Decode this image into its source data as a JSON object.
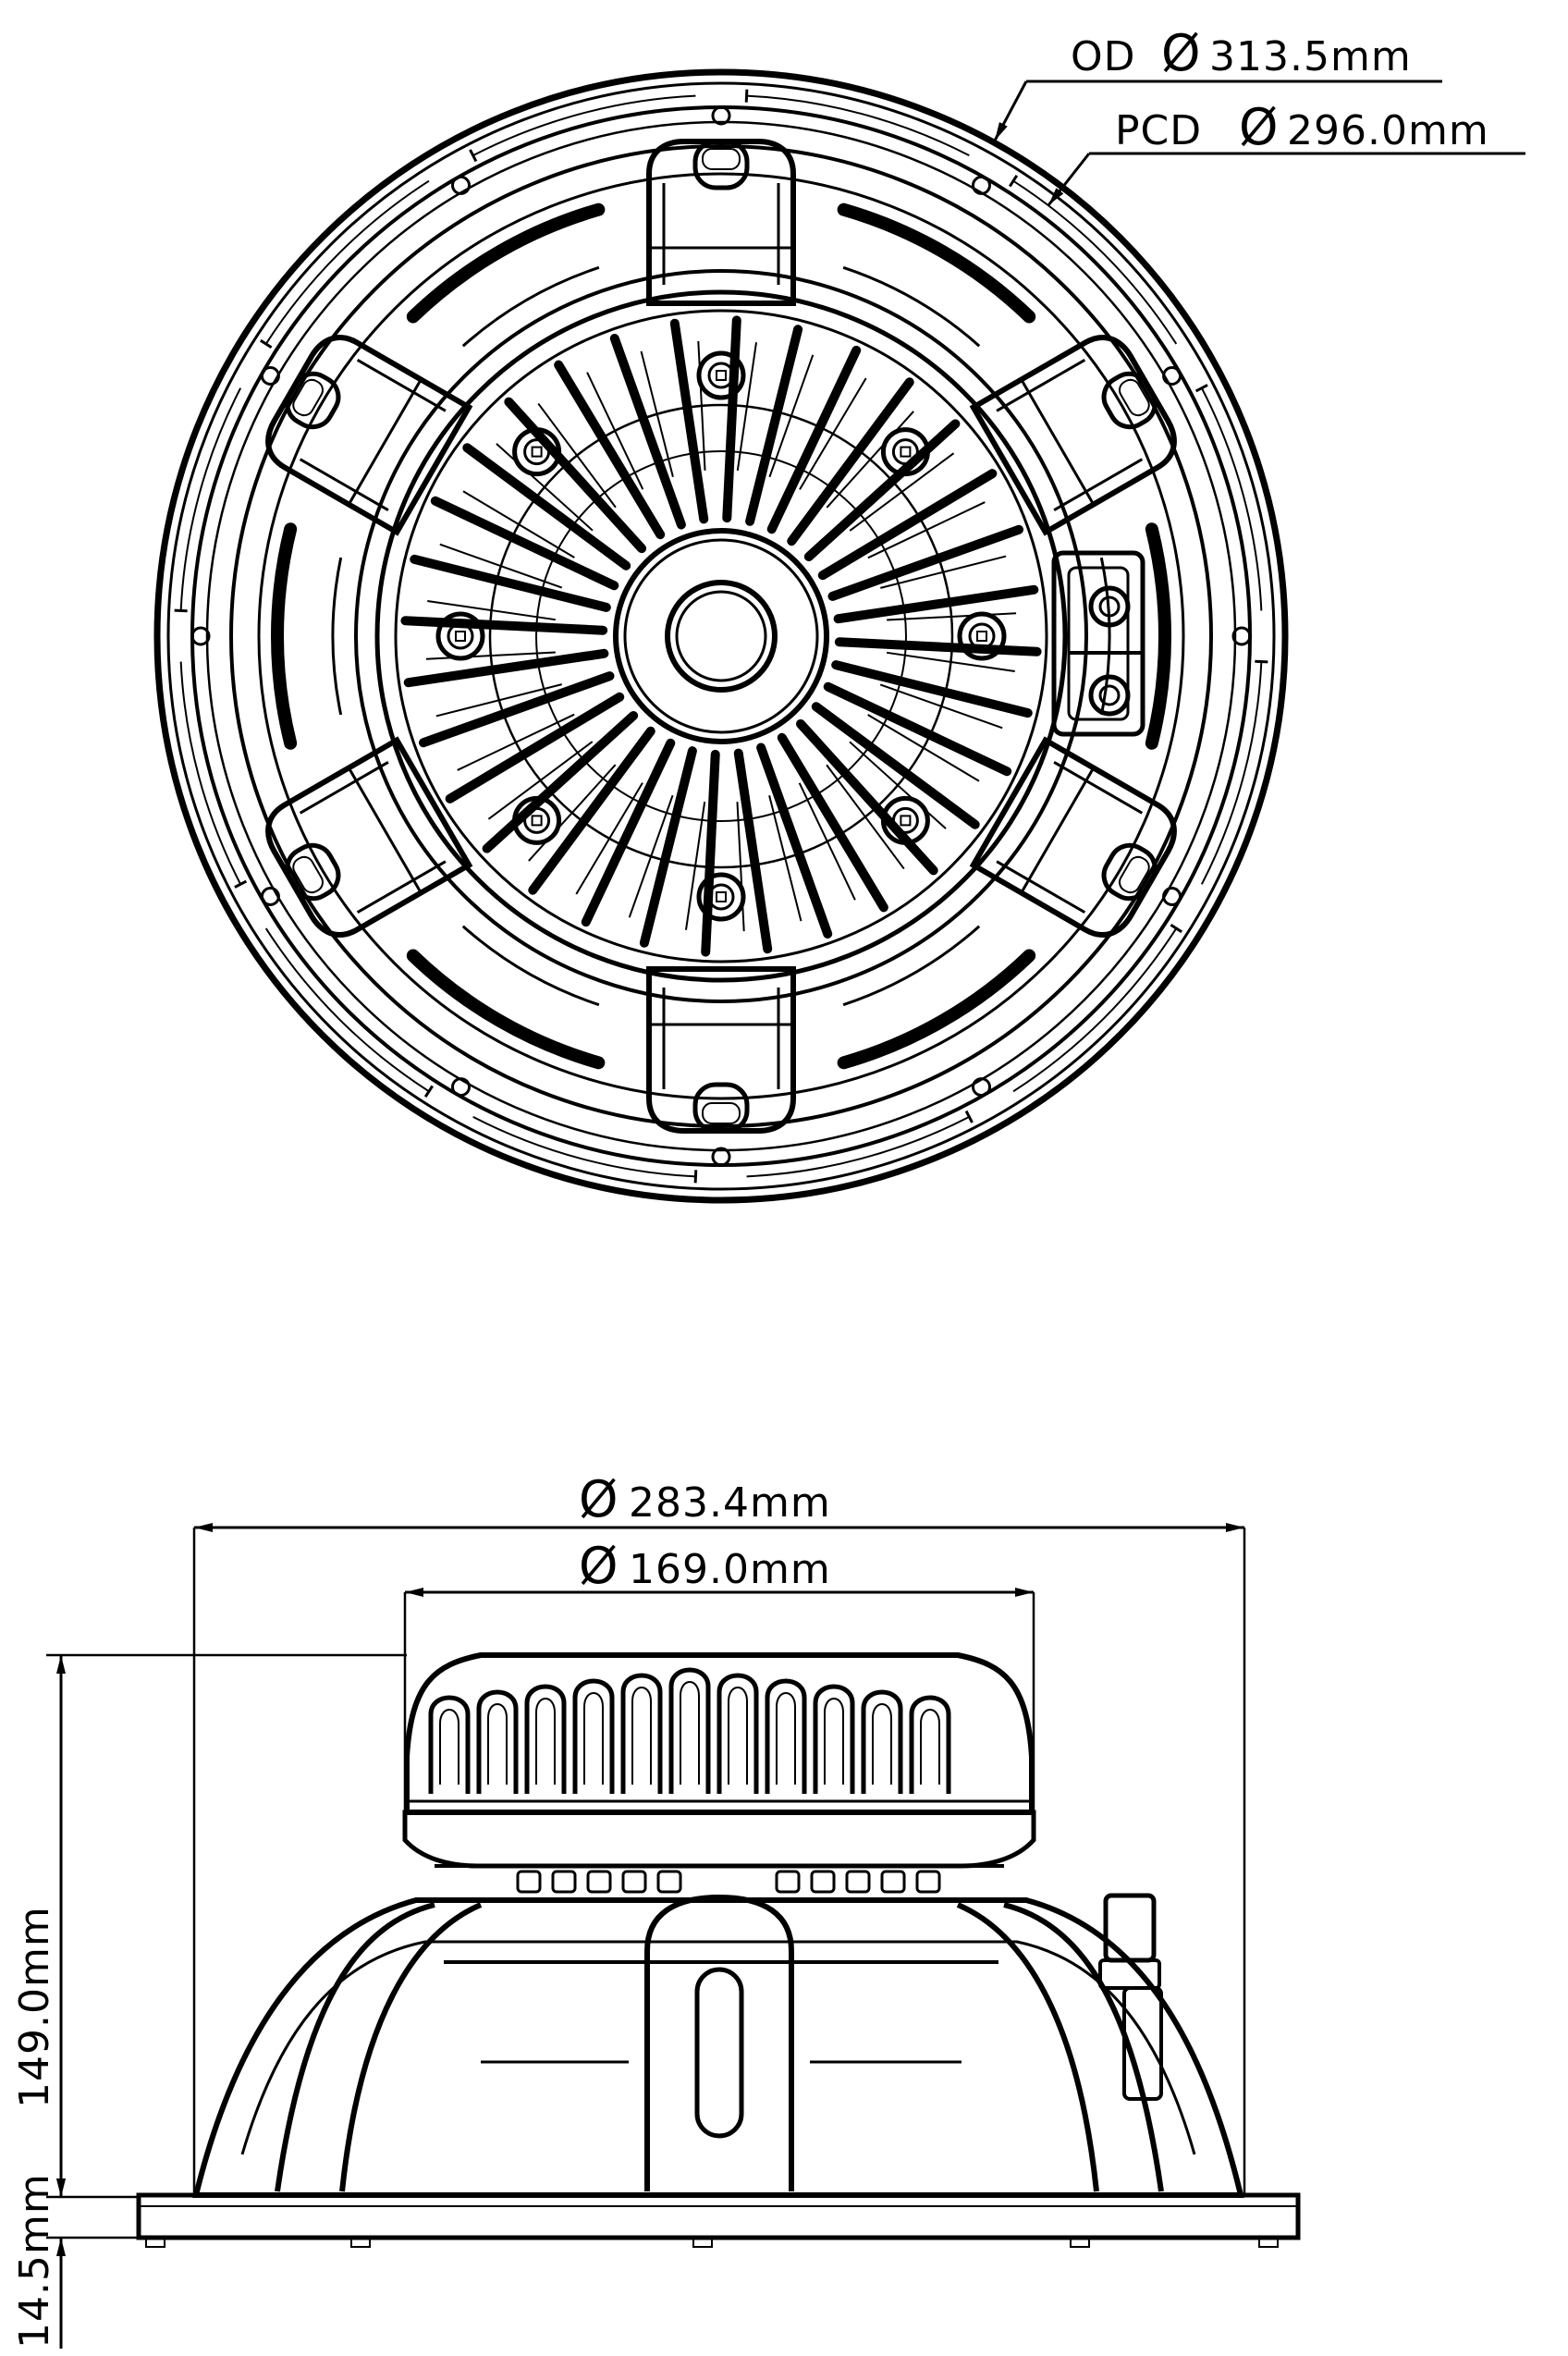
{
  "diagram": {
    "type": "technical-drawing",
    "ink_color": "#000000",
    "background_color": "#ffffff",
    "symbols": {
      "diameter": "Ø"
    },
    "top_view": {
      "labels": {
        "outer_diameter": "OD",
        "pitch_circle_diameter": "PCD"
      },
      "dimensions": {
        "outer_diameter": "313.5mm",
        "pitch_circle_diameter": "296.0mm"
      },
      "spoke_count": 6,
      "magnet_bolts": 8,
      "cooling_fins": 32
    },
    "side_view": {
      "dimensions": {
        "mounting_diameter": "283.4mm",
        "magnet_diameter": "169.0mm",
        "height": "149.0mm",
        "flange_thickness": "14.5mm"
      }
    }
  }
}
